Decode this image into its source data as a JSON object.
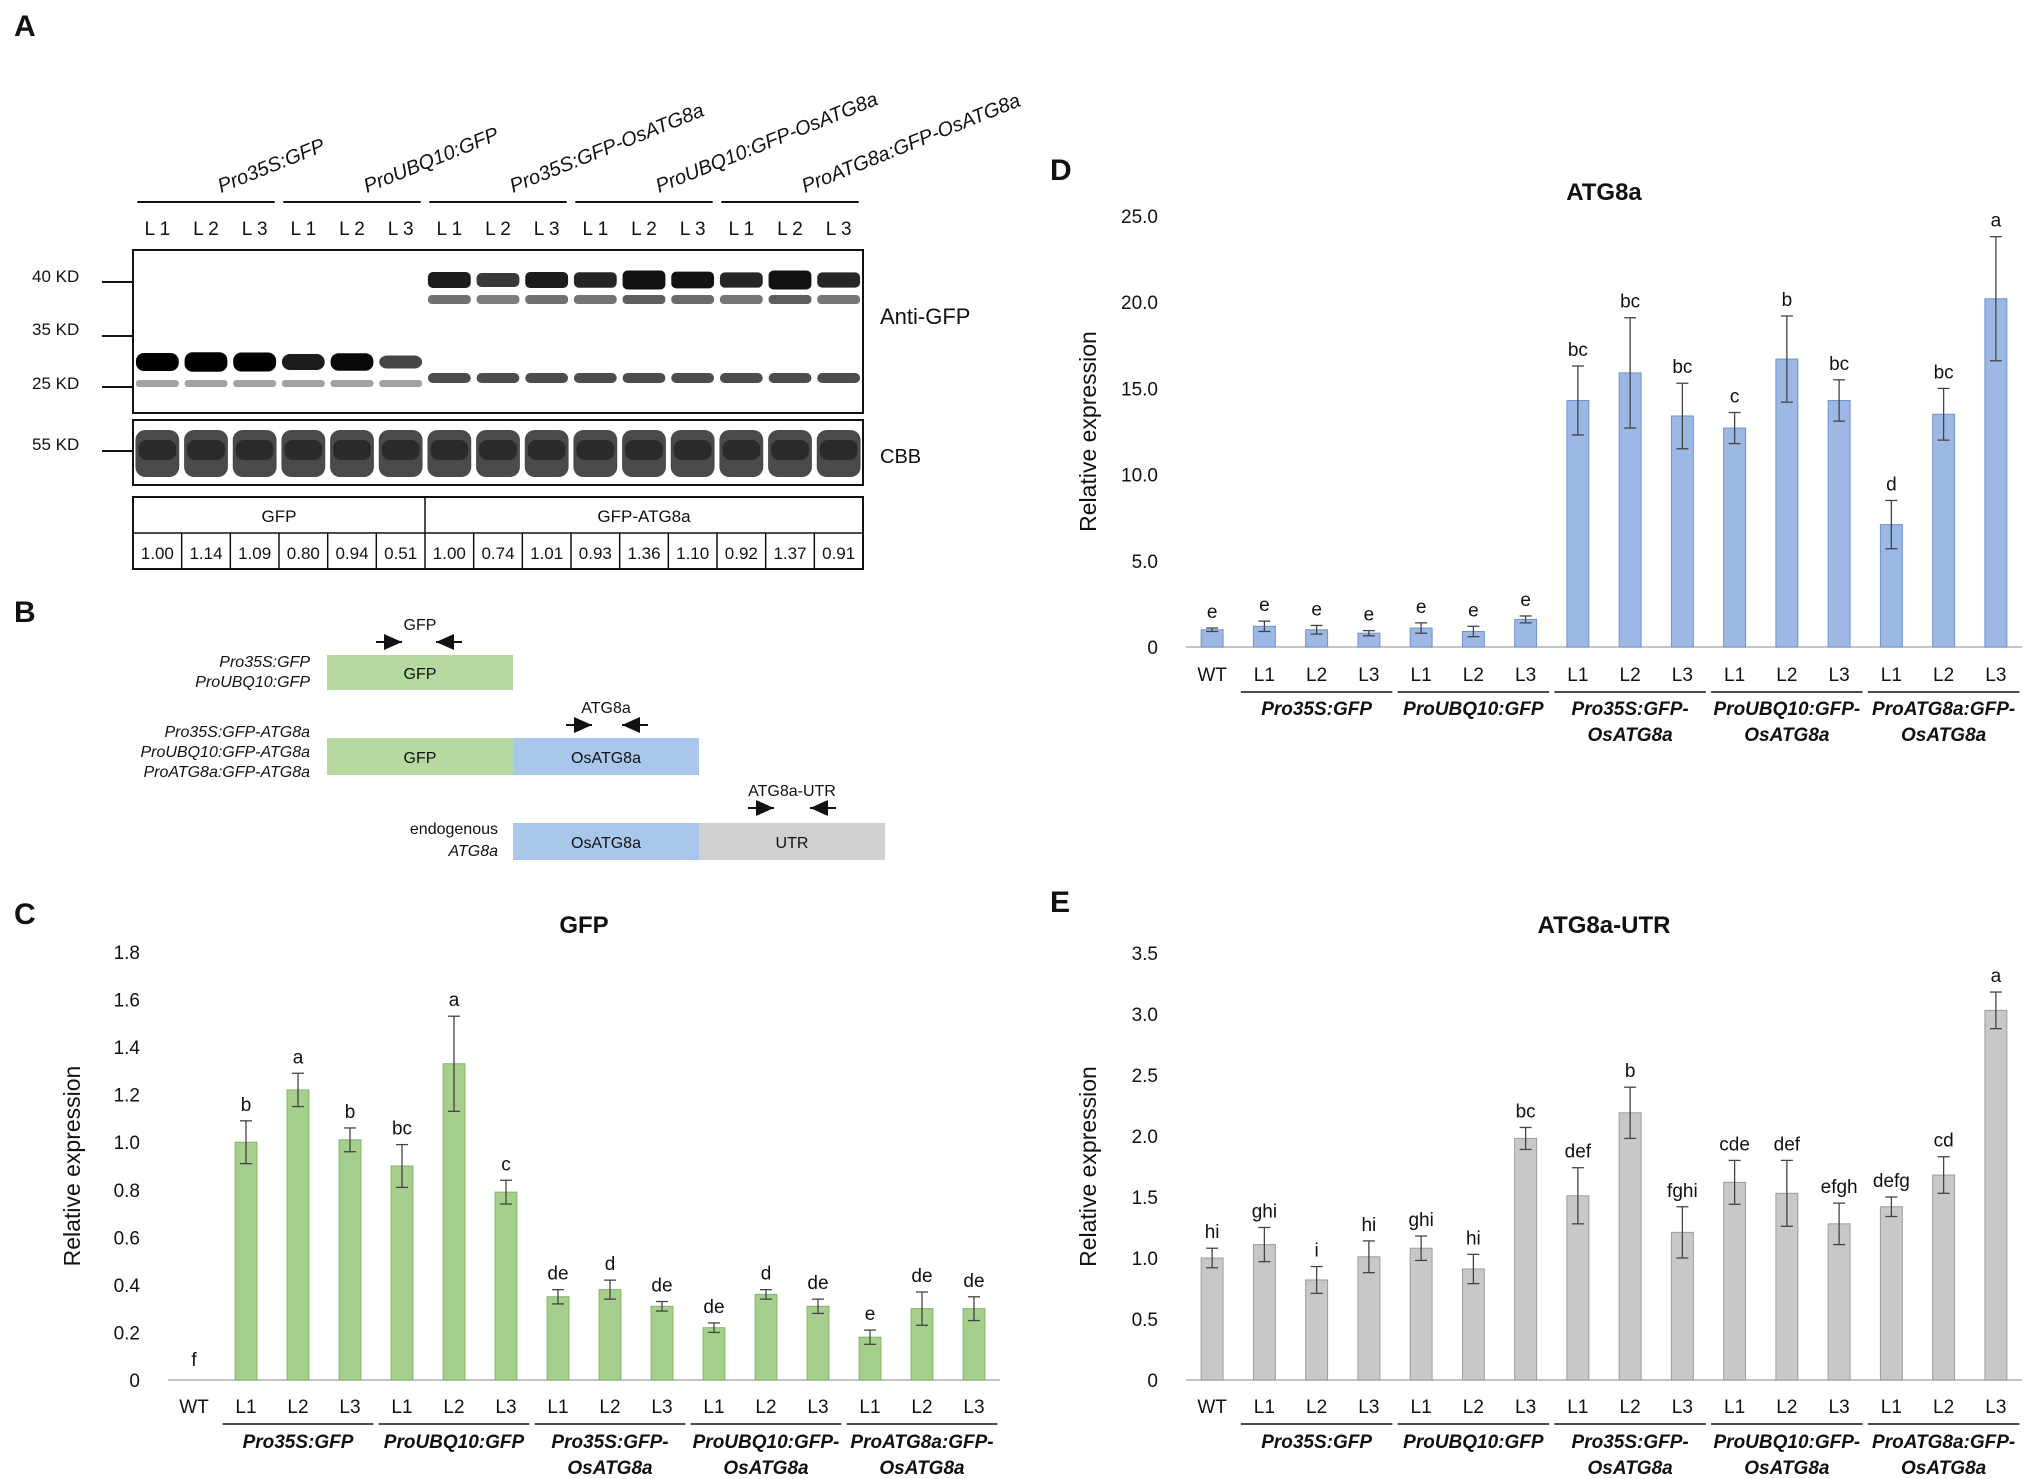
{
  "panels": {
    "A": {
      "letter": "A",
      "construct_labels": [
        "Pro35S:GFP",
        "ProUBQ10:GFP",
        "Pro35S:GFP-OsATG8a",
        "ProUBQ10:GFP-OsATG8a",
        "ProATG8a:GFP-OsATG8a"
      ],
      "lane_labels": [
        "L 1",
        "L 2",
        "L 3",
        "L 1",
        "L 2",
        "L 3",
        "L 1",
        "L 2",
        "L 3",
        "L 1",
        "L 2",
        "L 3",
        "L 1",
        "L 2",
        "L 3"
      ],
      "markers": [
        "40 KD",
        "35 KD",
        "25 KD",
        "55 KD"
      ],
      "blot_label": "Anti-GFP",
      "cbb_label": "CBB",
      "table_headers": [
        "GFP",
        "GFP-ATG8a"
      ],
      "quant_values": [
        "1.00",
        "1.14",
        "1.09",
        "0.80",
        "0.94",
        "0.51",
        "1.00",
        "0.74",
        "1.01",
        "0.93",
        "1.36",
        "1.10",
        "0.92",
        "1.37",
        "0.91"
      ],
      "gfp_band_intensity": [
        1.0,
        1.14,
        1.09,
        0.8,
        0.94,
        0.51
      ],
      "fusion_band_intensity": [
        1.0,
        0.74,
        1.01,
        0.93,
        1.36,
        1.1,
        0.92,
        1.37,
        0.91
      ]
    },
    "B": {
      "letter": "B",
      "row1_labels": [
        "Pro35S:GFP",
        "ProUBQ10:GFP"
      ],
      "row2_labels": [
        "Pro35S:GFP-ATG8a",
        "ProUBQ10:GFP-ATG8a",
        "ProATG8a:GFP-ATG8a"
      ],
      "row3_labels": [
        "endogenous",
        "ATG8a"
      ],
      "box_gfp": "GFP",
      "box_osatg8a": "OsATG8a",
      "box_utr": "UTR",
      "primer_gfp": "GFP",
      "primer_atg8a": "ATG8a",
      "primer_utr": "ATG8a-UTR",
      "colors": {
        "green": "#b5d9a0",
        "blue": "#a9c7ea",
        "gray": "#d0d0d0"
      }
    },
    "C": {
      "letter": "C"
    },
    "D": {
      "letter": "D"
    },
    "E": {
      "letter": "E"
    }
  },
  "chart_data": [
    {
      "id": "C",
      "type": "bar",
      "title": "GFP",
      "ylabel": "Relative expression",
      "xlabel": "",
      "ylim": [
        0,
        1.8
      ],
      "yticks": [
        "0",
        "0.2",
        "0.4",
        "0.6",
        "0.8",
        "1.0",
        "1.2",
        "1.4",
        "1.6",
        "1.8"
      ],
      "ytick_values": [
        0,
        0.2,
        0.4,
        0.6,
        0.8,
        1.0,
        1.2,
        1.4,
        1.6,
        1.8
      ],
      "categories": [
        "WT",
        "L1",
        "L2",
        "L3",
        "L1",
        "L2",
        "L3",
        "L1",
        "L2",
        "L3",
        "L1",
        "L2",
        "L3",
        "L1",
        "L2",
        "L3"
      ],
      "values": [
        0,
        1.0,
        1.22,
        1.01,
        0.9,
        1.33,
        0.79,
        0.35,
        0.38,
        0.31,
        0.22,
        0.36,
        0.31,
        0.18,
        0.3,
        0.3
      ],
      "errors": [
        0,
        0.09,
        0.07,
        0.05,
        0.09,
        0.2,
        0.05,
        0.03,
        0.04,
        0.02,
        0.02,
        0.02,
        0.03,
        0.03,
        0.07,
        0.05
      ],
      "letters": [
        "f",
        "b",
        "a",
        "b",
        "bc",
        "a",
        "c",
        "de",
        "d",
        "de",
        "de",
        "d",
        "de",
        "e",
        "de",
        "de"
      ],
      "groups": [
        {
          "line1": "Pro35S:GFP",
          "line2": ""
        },
        {
          "line1": "ProUBQ10:GFP",
          "line2": ""
        },
        {
          "line1": "Pro35S:GFP-",
          "line2": "OsATG8a"
        },
        {
          "line1": "ProUBQ10:GFP-",
          "line2": "OsATG8a"
        },
        {
          "line1": "ProATG8a:GFP-",
          "line2": "OsATG8a"
        }
      ],
      "color": "#a6cf8e",
      "edge": "#7fb466"
    },
    {
      "id": "D",
      "type": "bar",
      "title": "ATG8a",
      "ylabel": "Relative expression",
      "xlabel": "",
      "ylim": [
        0,
        25
      ],
      "yticks": [
        "0",
        "5.0",
        "10.0",
        "15.0",
        "20.0",
        "25.0"
      ],
      "ytick_values": [
        0,
        5,
        10,
        15,
        20,
        25
      ],
      "categories": [
        "WT",
        "L1",
        "L2",
        "L3",
        "L1",
        "L2",
        "L3",
        "L1",
        "L2",
        "L3",
        "L1",
        "L2",
        "L3",
        "L1",
        "L2",
        "L3"
      ],
      "values": [
        1.0,
        1.2,
        1.0,
        0.8,
        1.1,
        0.9,
        1.6,
        14.3,
        15.9,
        13.4,
        12.7,
        16.7,
        14.3,
        7.1,
        13.5,
        20.2
      ],
      "errors": [
        0.1,
        0.3,
        0.25,
        0.15,
        0.3,
        0.3,
        0.2,
        2.0,
        3.2,
        1.9,
        0.9,
        2.5,
        1.2,
        1.4,
        1.5,
        3.6
      ],
      "letters": [
        "e",
        "e",
        "e",
        "e",
        "e",
        "e",
        "e",
        "bc",
        "bc",
        "bc",
        "c",
        "b",
        "bc",
        "d",
        "bc",
        "a"
      ],
      "groups": [
        {
          "line1": "Pro35S:GFP",
          "line2": ""
        },
        {
          "line1": "ProUBQ10:GFP",
          "line2": ""
        },
        {
          "line1": "Pro35S:GFP-",
          "line2": "OsATG8a"
        },
        {
          "line1": "ProUBQ10:GFP-",
          "line2": "OsATG8a"
        },
        {
          "line1": "ProATG8a:GFP-",
          "line2": "OsATG8a"
        }
      ],
      "color": "#9db8e4",
      "edge": "#6f93cf"
    },
    {
      "id": "E",
      "type": "bar",
      "title": "ATG8a-UTR",
      "ylabel": "Relative expression",
      "xlabel": "",
      "ylim": [
        0,
        3.5
      ],
      "yticks": [
        "0",
        "0.5",
        "1.0",
        "1.5",
        "2.0",
        "2.5",
        "3.0",
        "3.5"
      ],
      "ytick_values": [
        0,
        0.5,
        1.0,
        1.5,
        2.0,
        2.5,
        3.0,
        3.5
      ],
      "categories": [
        "WT",
        "L1",
        "L2",
        "L3",
        "L1",
        "L2",
        "L3",
        "L1",
        "L2",
        "L3",
        "L1",
        "L2",
        "L3",
        "L1",
        "L2",
        "L3"
      ],
      "values": [
        1.0,
        1.11,
        0.82,
        1.01,
        1.08,
        0.91,
        1.98,
        1.51,
        2.19,
        1.21,
        1.62,
        1.53,
        1.28,
        1.42,
        1.68,
        3.03
      ],
      "errors": [
        0.08,
        0.14,
        0.11,
        0.13,
        0.1,
        0.12,
        0.09,
        0.23,
        0.21,
        0.21,
        0.18,
        0.27,
        0.17,
        0.08,
        0.15,
        0.15
      ],
      "letters": [
        "hi",
        "ghi",
        "i",
        "hi",
        "ghi",
        "hi",
        "bc",
        "def",
        "b",
        "fghi",
        "cde",
        "def",
        "efgh",
        "defg",
        "cd",
        "a"
      ],
      "groups": [
        {
          "line1": "Pro35S:GFP",
          "line2": ""
        },
        {
          "line1": "ProUBQ10:GFP",
          "line2": ""
        },
        {
          "line1": "Pro35S:GFP-",
          "line2": "OsATG8a"
        },
        {
          "line1": "ProUBQ10:GFP-",
          "line2": "OsATG8a"
        },
        {
          "line1": "ProATG8a:GFP-",
          "line2": "OsATG8a"
        }
      ],
      "color": "#c8c8c8",
      "edge": "#9c9c9c"
    }
  ]
}
